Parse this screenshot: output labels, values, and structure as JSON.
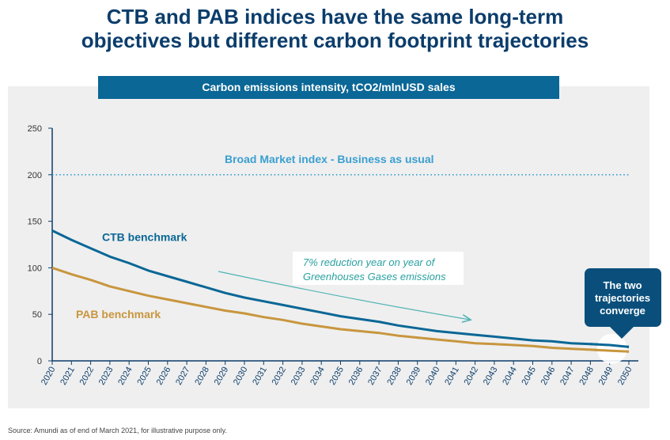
{
  "title_line1": "CTB and PAB indices have the same long-term",
  "title_line2": "objectives but different carbon footprint trajectories",
  "chart_data": {
    "type": "line",
    "title": "Carbon emissions intensity, tCO2/mlnUSD sales",
    "x": [
      2020,
      2021,
      2022,
      2023,
      2024,
      2025,
      2026,
      2027,
      2028,
      2029,
      2030,
      2031,
      2032,
      2033,
      2034,
      2035,
      2036,
      2037,
      2038,
      2039,
      2040,
      2041,
      2042,
      2043,
      2044,
      2045,
      2046,
      2047,
      2048,
      2049,
      2050
    ],
    "ylim": [
      0,
      250
    ],
    "yticks": [
      0,
      50,
      100,
      150,
      200,
      250
    ],
    "series": [
      {
        "name": "Broad Market index - Business as usual",
        "values": [
          200,
          200,
          200,
          200,
          200,
          200,
          200,
          200,
          200,
          200,
          200,
          200,
          200,
          200,
          200,
          200,
          200,
          200,
          200,
          200,
          200,
          200,
          200,
          200,
          200,
          200,
          200,
          200,
          200,
          200,
          200
        ],
        "color": "#3a9fd0",
        "style": "dotted"
      },
      {
        "name": "CTB benchmark",
        "values": [
          140,
          130,
          121,
          112,
          105,
          97,
          91,
          85,
          79,
          73,
          68,
          64,
          60,
          56,
          52,
          48,
          45,
          42,
          38,
          35,
          32,
          30,
          28,
          26,
          24,
          22,
          21,
          19,
          18,
          17,
          15
        ],
        "color": "#0a6796",
        "style": "solid"
      },
      {
        "name": "PAB benchmark",
        "values": [
          100,
          93,
          87,
          80,
          75,
          70,
          66,
          62,
          58,
          54,
          51,
          47,
          44,
          40,
          37,
          34,
          32,
          30,
          27,
          25,
          23,
          21,
          19,
          18,
          17,
          16,
          14,
          13,
          12,
          11,
          10
        ],
        "color": "#c8963e",
        "style": "solid"
      }
    ],
    "annotations": {
      "reduction": [
        "7% reduction year on year of",
        "Greenhouses Gases emissions"
      ],
      "converge": [
        "The two",
        "trajectories",
        "converge"
      ]
    }
  },
  "source": "Source: Amundi as of end of March 2021, for illustrative purpose only.",
  "colors": {
    "title": "#0b3d6b",
    "bar": "#0a6796",
    "panel": "#efefef",
    "arrow": "#4fb3b3"
  }
}
